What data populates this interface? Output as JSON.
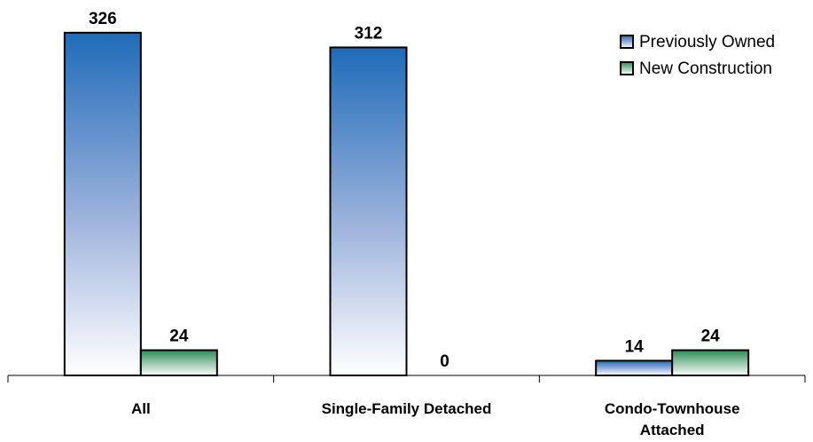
{
  "chart_data": {
    "type": "bar",
    "categories": [
      [
        "All"
      ],
      [
        "Single-Family Detached"
      ],
      [
        "Condo-Townhouse",
        "Attached"
      ]
    ],
    "series": [
      {
        "name": "Previously Owned",
        "values": [
          326,
          312,
          14
        ],
        "color": "#1f6bb8"
      },
      {
        "name": "New Construction",
        "values": [
          24,
          0,
          24
        ],
        "color": "#2e8b57"
      }
    ],
    "title": "",
    "xlabel": "",
    "ylabel": "",
    "ylim": [
      0,
      336
    ],
    "grid": false,
    "legend_position": "top-right"
  }
}
